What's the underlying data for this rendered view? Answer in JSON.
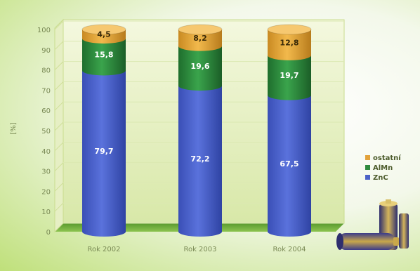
{
  "chart_data": {
    "type": "bar",
    "stacked": true,
    "ylabel": "[%]",
    "ylim": [
      0,
      100
    ],
    "yticks": [
      0,
      10,
      20,
      30,
      40,
      50,
      60,
      70,
      80,
      90,
      100
    ],
    "categories": [
      "Rok 2002",
      "Rok 2003",
      "Rok 2004"
    ],
    "series": [
      {
        "name": "ZnC",
        "color": "#4c62c7",
        "labels": [
          "79,7",
          "72,2",
          "67,5"
        ],
        "values": [
          79.7,
          72.2,
          67.5
        ]
      },
      {
        "name": "AlMn",
        "color": "#2e8a3e",
        "labels": [
          "15,8",
          "19,6",
          "19,7"
        ],
        "values": [
          15.8,
          19.6,
          19.7
        ]
      },
      {
        "name": "ostatní",
        "color": "#e2a23a",
        "labels": [
          "4,5",
          "8,2",
          "12,8"
        ],
        "values": [
          4.5,
          8.2,
          12.8
        ]
      }
    ],
    "legend": {
      "position": "right",
      "entries": [
        "ostatní",
        "AlMn",
        "ZnC"
      ]
    },
    "grid": true
  }
}
